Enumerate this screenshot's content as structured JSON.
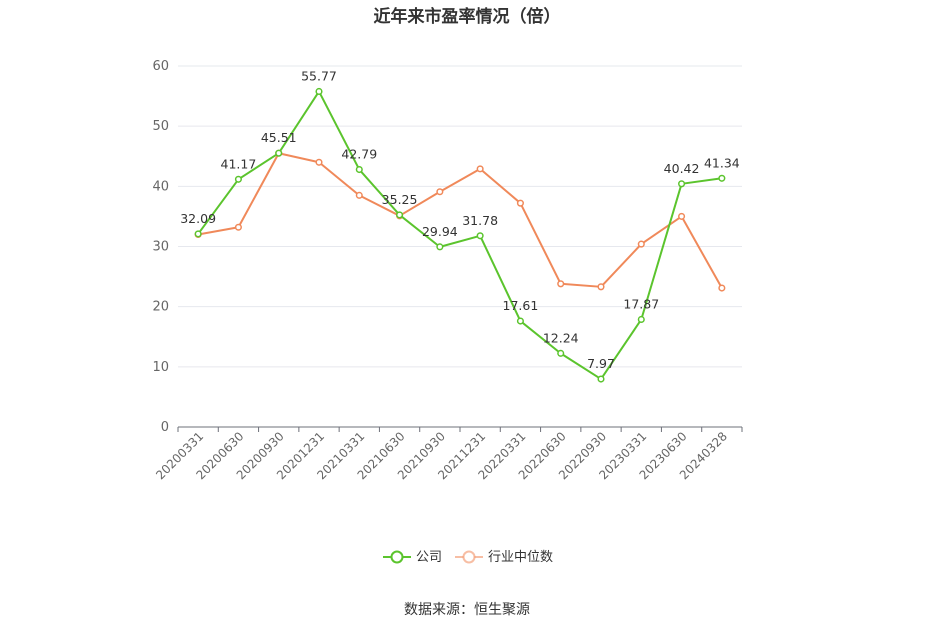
{
  "chart_data": {
    "type": "line",
    "title": "近年来市盈率情况（倍）",
    "categories": [
      "20200331",
      "20200630",
      "20200930",
      "20201231",
      "20210331",
      "20210630",
      "20210930",
      "20211231",
      "20220331",
      "20220630",
      "20220930",
      "20230331",
      "20230630",
      "20240328"
    ],
    "series": [
      {
        "name": "公司",
        "color": "#5bc42d",
        "values": [
          32.09,
          41.17,
          45.51,
          55.77,
          42.79,
          35.25,
          29.94,
          31.78,
          17.61,
          12.24,
          7.97,
          17.87,
          40.42,
          41.34
        ],
        "labels_shown": true
      },
      {
        "name": "行业中位数",
        "color": "#f0895a",
        "values": [
          32.0,
          33.2,
          45.5,
          44.0,
          38.5,
          35.1,
          39.1,
          42.9,
          37.2,
          23.8,
          23.3,
          30.4,
          35.0,
          23.1
        ],
        "labels_shown": false
      }
    ],
    "ylim": [
      0,
      60
    ],
    "yticks": [
      0,
      10,
      20,
      30,
      40,
      50,
      60
    ],
    "grid": true,
    "legend_position": "bottom-center"
  },
  "footer": {
    "source": "数据来源：恒生聚源"
  }
}
